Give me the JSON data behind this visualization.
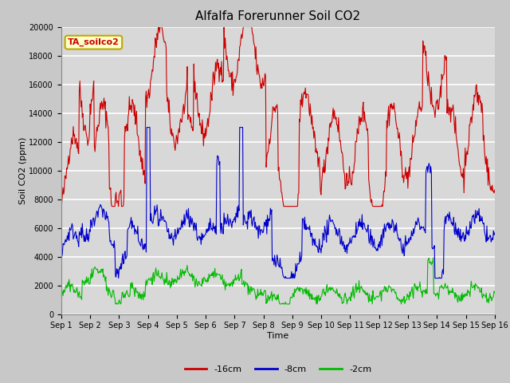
{
  "title": "Alfalfa Forerunner Soil CO2",
  "xlabel": "Time",
  "ylabel": "Soil CO2 (ppm)",
  "legend_label": "TA_soilco2",
  "series_labels": [
    "-16cm",
    "-8cm",
    "-2cm"
  ],
  "series_colors": [
    "#cc0000",
    "#0000cc",
    "#00bb00"
  ],
  "ylim": [
    0,
    20000
  ],
  "xlim": [
    0,
    15
  ],
  "xtick_labels": [
    "Sep 1",
    "Sep 2",
    "Sep 3",
    "Sep 4",
    "Sep 5",
    "Sep 6",
    "Sep 7",
    "Sep 8",
    "Sep 9",
    "Sep 10",
    "Sep 11",
    "Sep 12",
    "Sep 13",
    "Sep 14",
    "Sep 15",
    "Sep 16"
  ],
  "fig_bg": "#c8c8c8",
  "plot_bg": "#d8d8d8",
  "grid_color": "#ffffff",
  "title_fontsize": 11,
  "axis_fontsize": 8,
  "tick_fontsize": 7,
  "legend_box_facecolor": "#ffffcc",
  "legend_box_edgecolor": "#bbaa00",
  "legend_label_color": "#cc0000"
}
